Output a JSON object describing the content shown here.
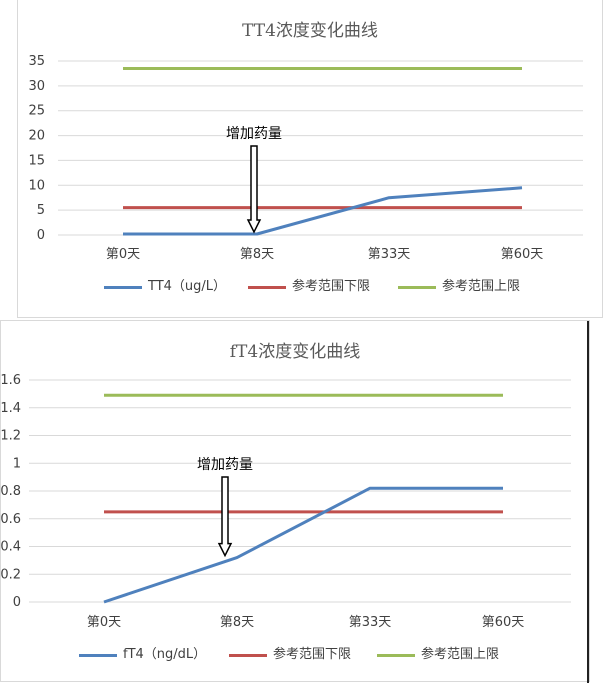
{
  "chart_data": [
    {
      "type": "line",
      "title": "TT4浓度变化曲线",
      "categories": [
        "第0天",
        "第8天",
        "第33天",
        "第60天"
      ],
      "ylim": [
        0,
        35
      ],
      "yticks": [
        0,
        5,
        10,
        15,
        20,
        25,
        30,
        35
      ],
      "grid": true,
      "legend": "bottom",
      "series": [
        {
          "name": "TT4（ug/L）",
          "values": [
            0.2,
            0.2,
            7.5,
            9.5
          ],
          "color": "#4f81bd"
        },
        {
          "name": "参考范围下限",
          "values": [
            5.5,
            5.5,
            5.5,
            5.5
          ],
          "color": "#c0504d"
        },
        {
          "name": "参考范围上限",
          "values": [
            33.5,
            33.5,
            33.5,
            33.5
          ],
          "color": "#9bbb59"
        }
      ],
      "annotation": {
        "text": "增加药量",
        "category_index": 1
      }
    },
    {
      "type": "line",
      "title": "fT4浓度变化曲线",
      "categories": [
        "第0天",
        "第8天",
        "第33天",
        "第60天"
      ],
      "ylim": [
        0,
        1.6
      ],
      "yticks": [
        0,
        0.2,
        0.4,
        0.6,
        0.8,
        1,
        1.2,
        1.4,
        1.6
      ],
      "grid": true,
      "legend": "bottom",
      "series": [
        {
          "name": "fT4（ng/dL）",
          "values": [
            0,
            0.32,
            0.82,
            0.82
          ],
          "color": "#4f81bd"
        },
        {
          "name": "参考范围下限",
          "values": [
            0.65,
            0.65,
            0.65,
            0.65
          ],
          "color": "#c0504d"
        },
        {
          "name": "参考范围上限",
          "values": [
            1.49,
            1.49,
            1.49,
            1.49
          ],
          "color": "#9bbb59"
        }
      ],
      "annotation": {
        "text": "增加药量",
        "category_index": 1
      }
    }
  ]
}
